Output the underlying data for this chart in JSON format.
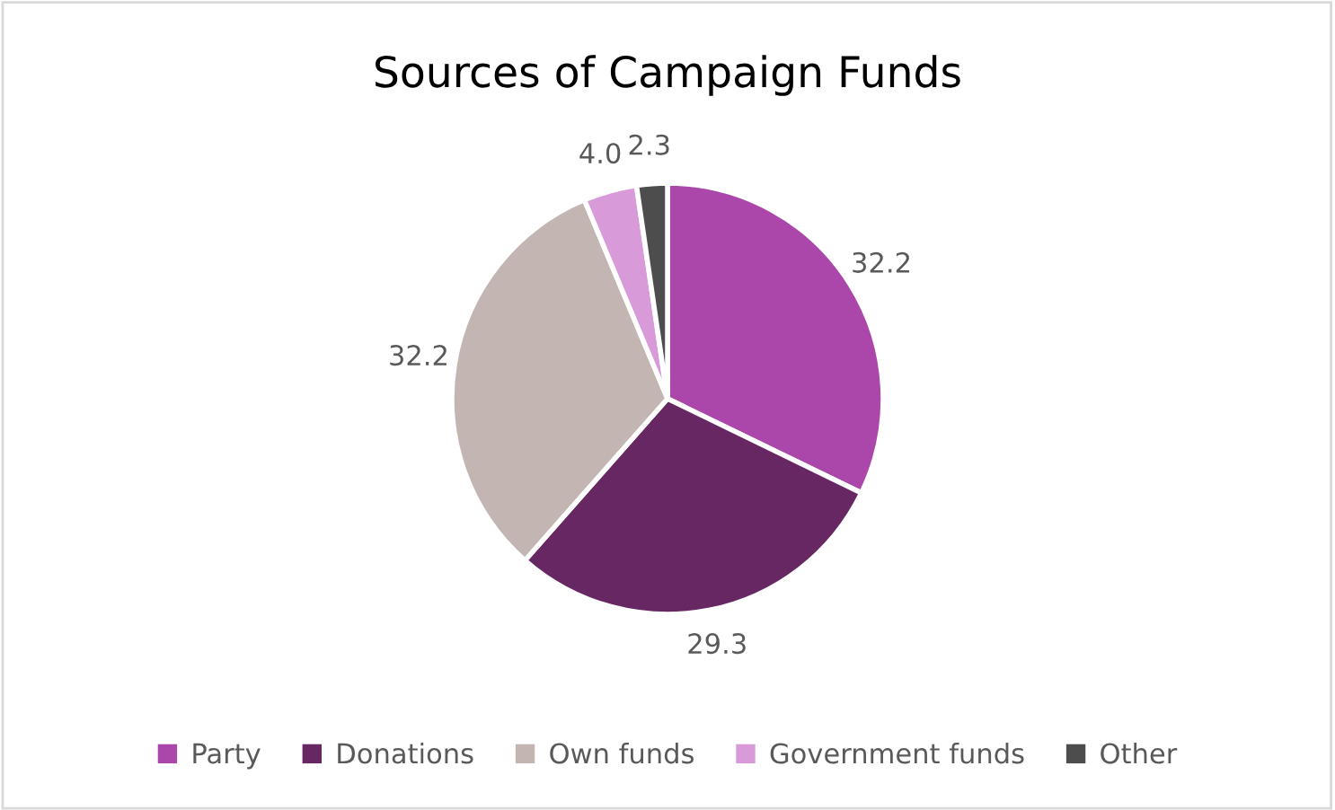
{
  "chart_data": {
    "type": "pie",
    "title": "Sources of Campaign Funds",
    "categories": [
      "Party",
      "Donations",
      "Own funds",
      "Government funds",
      "Other"
    ],
    "values": [
      32.2,
      29.3,
      32.2,
      4.0,
      2.3
    ],
    "colors": [
      "#ab47ab",
      "#672762",
      "#c2b5b2",
      "#d99ad9",
      "#4d4d4d"
    ],
    "value_labels": [
      "32.2",
      "29.3",
      "32.2",
      "4.0",
      "2.3"
    ],
    "legend": "bottom"
  }
}
